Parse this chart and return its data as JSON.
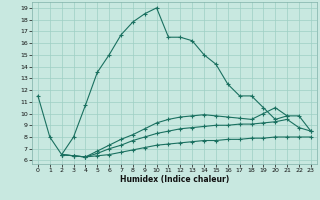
{
  "xlabel": "Humidex (Indice chaleur)",
  "bg_color": "#c8e8e0",
  "grid_color": "#9ecfc4",
  "line_color": "#1a7060",
  "xlim": [
    -0.5,
    23.5
  ],
  "ylim": [
    5.7,
    19.5
  ],
  "xticks": [
    0,
    1,
    2,
    3,
    4,
    5,
    6,
    7,
    8,
    9,
    10,
    11,
    12,
    13,
    14,
    15,
    16,
    17,
    18,
    19,
    20,
    21,
    22,
    23
  ],
  "yticks": [
    6,
    7,
    8,
    9,
    10,
    11,
    12,
    13,
    14,
    15,
    16,
    17,
    18,
    19
  ],
  "curve_main_x": [
    0,
    1,
    2,
    3,
    4,
    5,
    6,
    7,
    8,
    9,
    10,
    11,
    12,
    13,
    14,
    15,
    16,
    17,
    18,
    19,
    20,
    21
  ],
  "curve_main_y": [
    11.5,
    8.0,
    6.5,
    8.0,
    10.7,
    13.5,
    15.0,
    16.7,
    17.8,
    18.5,
    19.0,
    16.5,
    16.5,
    16.2,
    15.0,
    14.2,
    12.5,
    11.5,
    11.5,
    10.5,
    9.5,
    9.8
  ],
  "curve_low1_x": [
    2,
    3,
    4,
    5,
    6,
    7,
    8,
    9,
    10,
    11,
    12,
    13,
    14,
    15,
    16,
    17,
    18,
    19,
    20,
    21,
    22,
    23
  ],
  "curve_low1_y": [
    6.5,
    6.4,
    6.3,
    6.4,
    6.5,
    6.7,
    6.9,
    7.1,
    7.3,
    7.4,
    7.5,
    7.6,
    7.7,
    7.7,
    7.8,
    7.8,
    7.9,
    7.9,
    8.0,
    8.0,
    8.0,
    8.0
  ],
  "curve_low2_x": [
    2,
    3,
    4,
    5,
    6,
    7,
    8,
    9,
    10,
    11,
    12,
    13,
    14,
    15,
    16,
    17,
    18,
    19,
    20,
    21,
    22,
    23
  ],
  "curve_low2_y": [
    6.5,
    6.4,
    6.3,
    6.6,
    7.0,
    7.3,
    7.7,
    8.0,
    8.3,
    8.5,
    8.7,
    8.8,
    8.9,
    9.0,
    9.0,
    9.1,
    9.1,
    9.2,
    9.3,
    9.5,
    8.8,
    8.5
  ],
  "curve_low3_x": [
    2,
    3,
    4,
    5,
    6,
    7,
    8,
    9,
    10,
    11,
    12,
    13,
    14,
    15,
    16,
    17,
    18,
    19,
    20,
    21,
    22,
    23
  ],
  "curve_low3_y": [
    6.5,
    6.4,
    6.3,
    6.8,
    7.3,
    7.8,
    8.2,
    8.7,
    9.2,
    9.5,
    9.7,
    9.8,
    9.9,
    9.8,
    9.7,
    9.6,
    9.5,
    10.0,
    10.5,
    9.8,
    9.8,
    8.5
  ]
}
